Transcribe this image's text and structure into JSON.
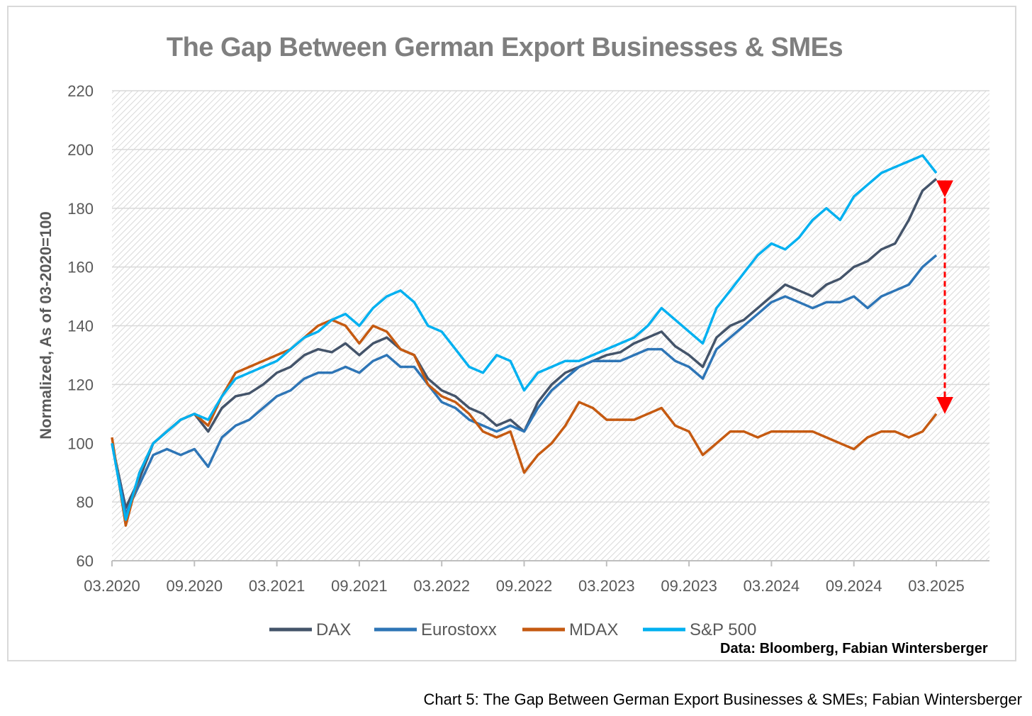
{
  "chart_data": {
    "type": "line",
    "title": "The Gap Between German Export Businesses & SMEs",
    "xlabel": "",
    "ylabel": "Normalized, As of 03-2020=100",
    "ylim": [
      60,
      220
    ],
    "yticks": [
      60,
      80,
      100,
      120,
      140,
      160,
      180,
      200,
      220
    ],
    "xticks": [
      "03.2020",
      "09.2020",
      "03.2021",
      "09.2021",
      "03.2022",
      "09.2022",
      "03.2023",
      "09.2023",
      "03.2024",
      "09.2024",
      "03.2025"
    ],
    "x": [
      "03.2020",
      "04.2020",
      "05.2020",
      "06.2020",
      "07.2020",
      "08.2020",
      "09.2020",
      "10.2020",
      "11.2020",
      "12.2020",
      "01.2021",
      "02.2021",
      "03.2021",
      "04.2021",
      "05.2021",
      "06.2021",
      "07.2021",
      "08.2021",
      "09.2021",
      "10.2021",
      "11.2021",
      "12.2021",
      "01.2022",
      "02.2022",
      "03.2022",
      "04.2022",
      "05.2022",
      "06.2022",
      "07.2022",
      "08.2022",
      "09.2022",
      "10.2022",
      "11.2022",
      "12.2022",
      "01.2023",
      "02.2023",
      "03.2023",
      "04.2023",
      "05.2023",
      "06.2023",
      "07.2023",
      "08.2023",
      "09.2023",
      "10.2023",
      "11.2023",
      "12.2023",
      "01.2024",
      "02.2024",
      "03.2024",
      "04.2024",
      "05.2024",
      "06.2024",
      "07.2024",
      "08.2024",
      "09.2024",
      "10.2024",
      "11.2024",
      "12.2024",
      "01.2025",
      "02.2025",
      "03.2025"
    ],
    "series": [
      {
        "name": "DAX",
        "color": "#44546a",
        "values": [
          100,
          78,
          88,
          100,
          104,
          108,
          110,
          104,
          112,
          116,
          117,
          120,
          124,
          126,
          130,
          132,
          131,
          134,
          130,
          134,
          136,
          132,
          130,
          122,
          118,
          116,
          112,
          110,
          106,
          108,
          104,
          114,
          120,
          124,
          126,
          128,
          130,
          131,
          134,
          136,
          138,
          133,
          130,
          126,
          136,
          140,
          142,
          146,
          150,
          154,
          152,
          150,
          154,
          156,
          160,
          162,
          166,
          168,
          176,
          186,
          190
        ]
      },
      {
        "name": "Eurostoxx",
        "color": "#2e75b6",
        "values": [
          100,
          76,
          86,
          96,
          98,
          96,
          98,
          92,
          102,
          106,
          108,
          112,
          116,
          118,
          122,
          124,
          124,
          126,
          124,
          128,
          130,
          126,
          126,
          120,
          114,
          112,
          108,
          106,
          104,
          106,
          104,
          112,
          118,
          122,
          126,
          128,
          128,
          128,
          130,
          132,
          132,
          128,
          126,
          122,
          132,
          136,
          140,
          144,
          148,
          150,
          148,
          146,
          148,
          148,
          150,
          146,
          150,
          152,
          154,
          160,
          164
        ]
      },
      {
        "name": "MDAX",
        "color": "#c55a11",
        "values": [
          102,
          72,
          90,
          100,
          104,
          108,
          110,
          106,
          116,
          124,
          126,
          128,
          130,
          132,
          136,
          140,
          142,
          140,
          134,
          140,
          138,
          132,
          130,
          120,
          116,
          114,
          110,
          104,
          102,
          104,
          90,
          96,
          100,
          106,
          114,
          112,
          108,
          108,
          108,
          110,
          112,
          106,
          104,
          96,
          100,
          104,
          104,
          102,
          104,
          104,
          104,
          104,
          102,
          100,
          98,
          102,
          104,
          104,
          102,
          104,
          110
        ]
      },
      {
        "name": "S&P 500",
        "color": "#00b0f0",
        "values": [
          100,
          74,
          90,
          100,
          104,
          108,
          110,
          108,
          116,
          122,
          124,
          126,
          128,
          132,
          136,
          138,
          142,
          144,
          140,
          146,
          150,
          152,
          148,
          140,
          138,
          132,
          126,
          124,
          130,
          128,
          118,
          124,
          126,
          128,
          128,
          130,
          132,
          134,
          136,
          140,
          146,
          142,
          138,
          134,
          146,
          152,
          158,
          164,
          168,
          166,
          170,
          176,
          180,
          176,
          184,
          188,
          192,
          194,
          196,
          198,
          192
        ]
      }
    ],
    "annotation": "red dashed double-headed arrow between DAX and MDAX at 03.2025",
    "grid": true,
    "legend_position": "bottom"
  },
  "source_note": "Data: Bloomberg, Fabian Wintersberger",
  "caption": "Chart 5: The Gap Between German Export Businesses & SMEs; Fabian Wintersberger"
}
